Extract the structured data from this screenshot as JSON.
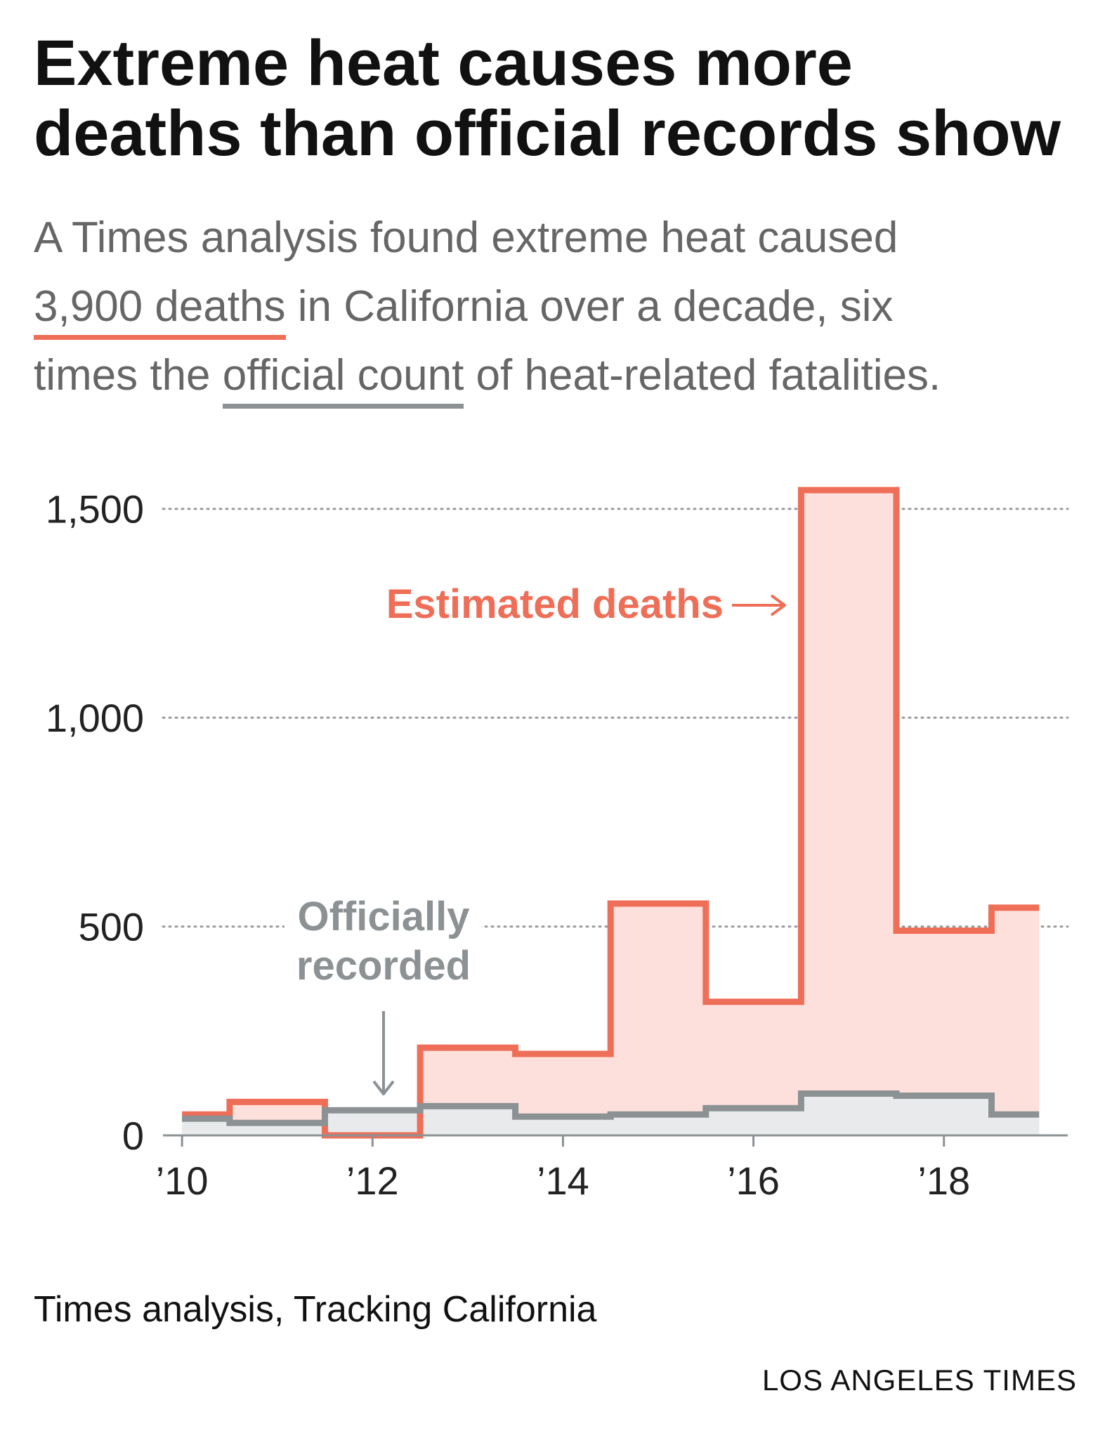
{
  "title_line1": "Extreme heat causes more",
  "title_line2": "deaths than official records show",
  "subtitle": {
    "part1": "A Times analysis found extreme heat caused",
    "highlight1": "3,900 deaths",
    "part2": " in California over a decade, six",
    "part3": "times the ",
    "highlight2": "official count",
    "part4": " of heat-related fatalities."
  },
  "colors": {
    "estimated": "#ef6e58",
    "estimated_fill": "#fde0dc",
    "official": "#8c9194",
    "official_fill": "#e9eaeb",
    "gridline": "#9a9a9a",
    "axis": "#8c9194"
  },
  "chart_data": {
    "type": "area",
    "step": true,
    "x_tick_labels": [
      "’10",
      "’12",
      "’14",
      "’16",
      "’18"
    ],
    "x_tick_values": [
      2010,
      2012,
      2014,
      2016,
      2018
    ],
    "y_tick_labels": [
      "0",
      "500",
      "1,000",
      "1,500"
    ],
    "y_tick_values": [
      0,
      500,
      1000,
      1500
    ],
    "xlim": [
      2009.8,
      2019.3
    ],
    "ylim": [
      0,
      1550
    ],
    "grid": true,
    "series": [
      {
        "name": "Estimated deaths",
        "x": [
          2010,
          2011,
          2012,
          2013,
          2014,
          2015,
          2016,
          2017,
          2018,
          2019
        ],
        "values": [
          50,
          80,
          0,
          210,
          195,
          555,
          320,
          1545,
          490,
          545
        ]
      },
      {
        "name": "Officially recorded",
        "x": [
          2010,
          2011,
          2012,
          2013,
          2014,
          2015,
          2016,
          2017,
          2018,
          2019
        ],
        "values": [
          40,
          30,
          60,
          70,
          45,
          50,
          65,
          100,
          95,
          50
        ]
      }
    ]
  },
  "annotations": {
    "estimated_label": "Estimated deaths",
    "estimated_arrow": "⟶",
    "official_label_line1": "Officially",
    "official_label_line2": "recorded"
  },
  "source": "Times analysis, Tracking California",
  "credit": "LOS ANGELES TIMES"
}
